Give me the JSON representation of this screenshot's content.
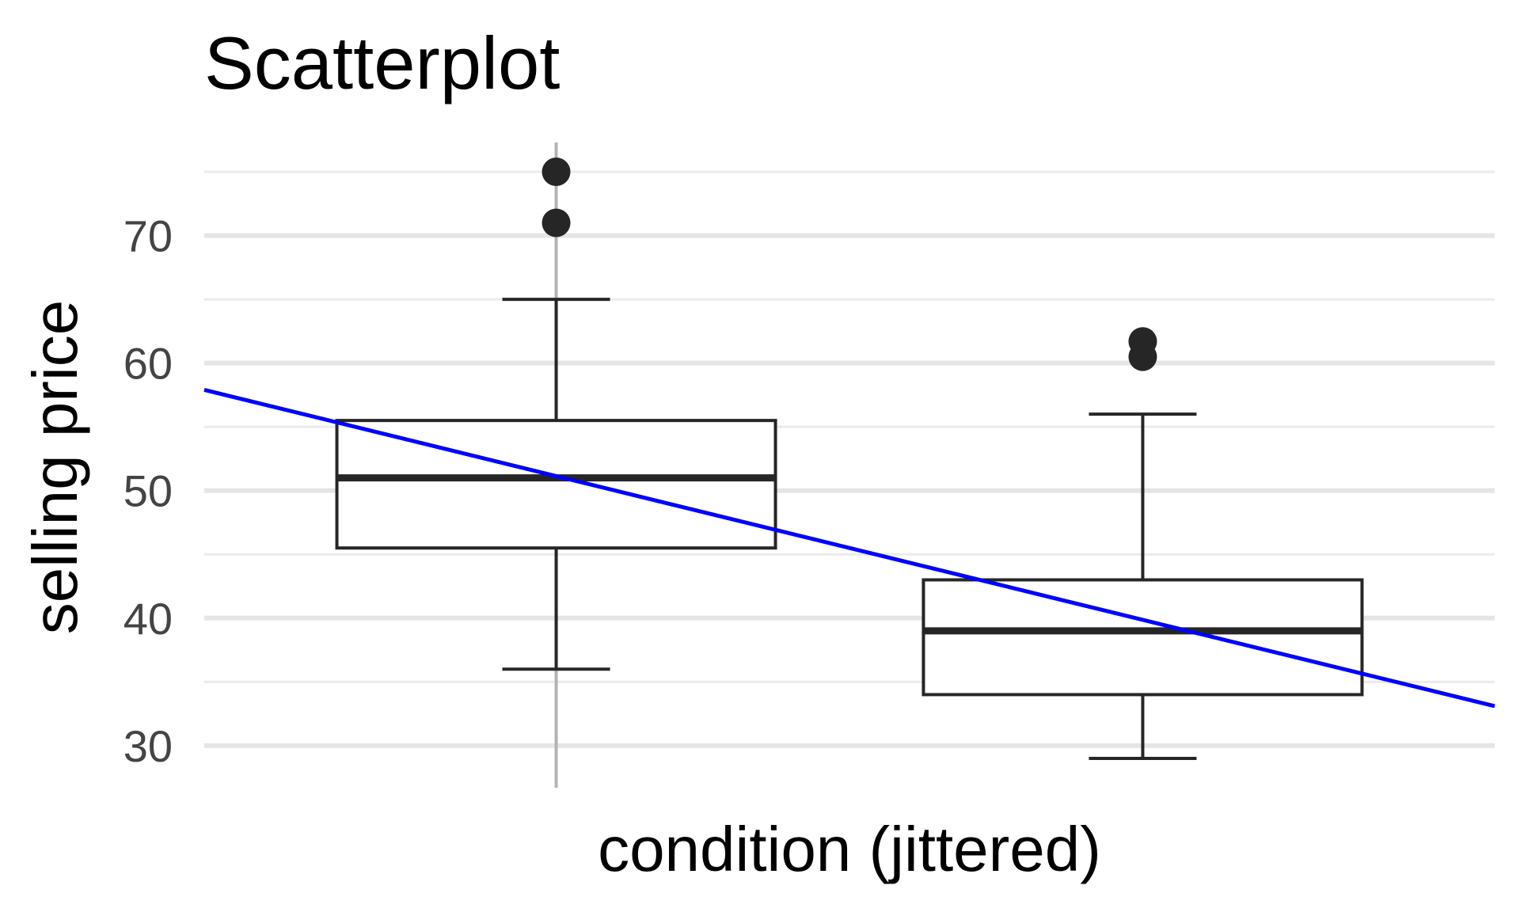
{
  "chart_data": {
    "type": "box",
    "title": "Scatterplot",
    "xlabel": "condition (jittered)",
    "ylabel": "selling price",
    "ylim": [
      26.7,
      77.3
    ],
    "xlim": [
      0.4,
      2.6
    ],
    "y_ticks": [
      "30",
      "40",
      "50",
      "60",
      "70"
    ],
    "grid": true,
    "boxes": [
      {
        "x": 1,
        "q1": 45.5,
        "median": 51,
        "q3": 55.5,
        "whisker_low": 36,
        "whisker_high": 65,
        "outliers": [
          71,
          75
        ]
      },
      {
        "x": 2,
        "q1": 34,
        "median": 39,
        "q3": 43,
        "whisker_low": 29,
        "whisker_high": 56,
        "outliers": [
          60.5,
          61.7
        ]
      }
    ],
    "regression_line": {
      "x": [
        0.4,
        2.6
      ],
      "y": [
        57.9,
        33.1
      ],
      "color": "#0000ff"
    },
    "marker_line": {
      "x": 1,
      "color": "#b3b3b3"
    }
  }
}
